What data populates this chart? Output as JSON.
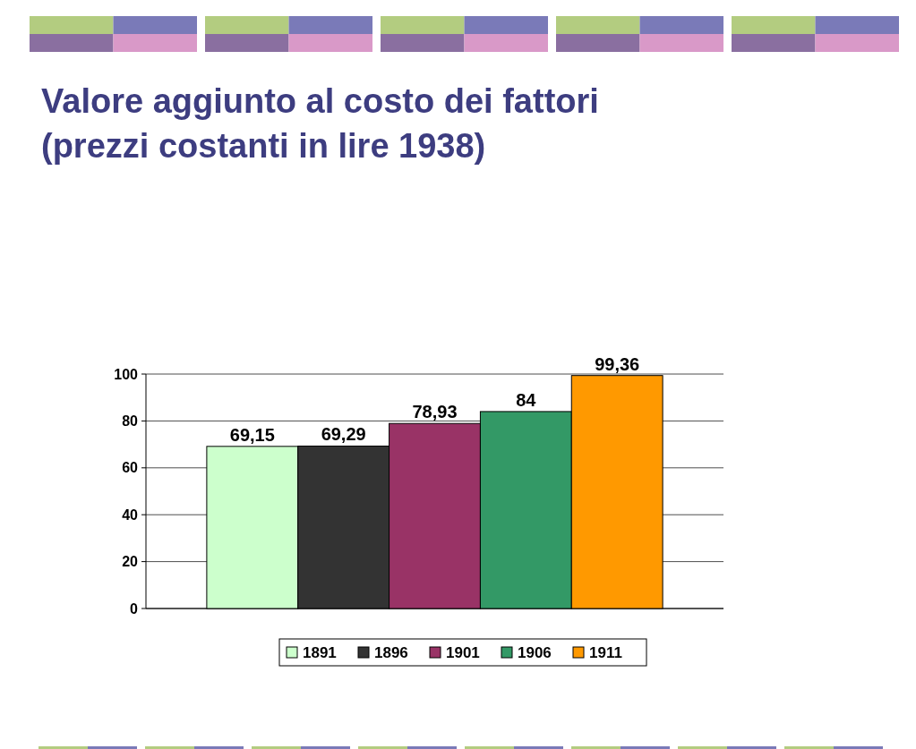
{
  "chart_data": {
    "type": "bar",
    "title": "Valore aggiunto al costo dei fattori\n(prezzi costanti in lire 1938)",
    "categories": [
      null
    ],
    "series": [
      {
        "name": "1891",
        "color": "#ccffcc",
        "values": [
          69.15
        ],
        "value_labels": [
          "69,15"
        ]
      },
      {
        "name": "1896",
        "color": "#333333",
        "values": [
          69.29
        ],
        "value_labels": [
          "69,29"
        ]
      },
      {
        "name": "1901",
        "color": "#993366",
        "values": [
          78.93
        ],
        "value_labels": [
          "78,93"
        ]
      },
      {
        "name": "1906",
        "color": "#339966",
        "values": [
          84
        ],
        "value_labels": [
          "84"
        ]
      },
      {
        "name": "1911",
        "color": "#ff9900",
        "values": [
          99.36
        ],
        "value_labels": [
          "99,36"
        ]
      }
    ],
    "ylim": [
      0,
      100
    ],
    "yticks": [
      0,
      20,
      40,
      60,
      80,
      100
    ],
    "grid": "y",
    "legend": "bottom"
  }
}
